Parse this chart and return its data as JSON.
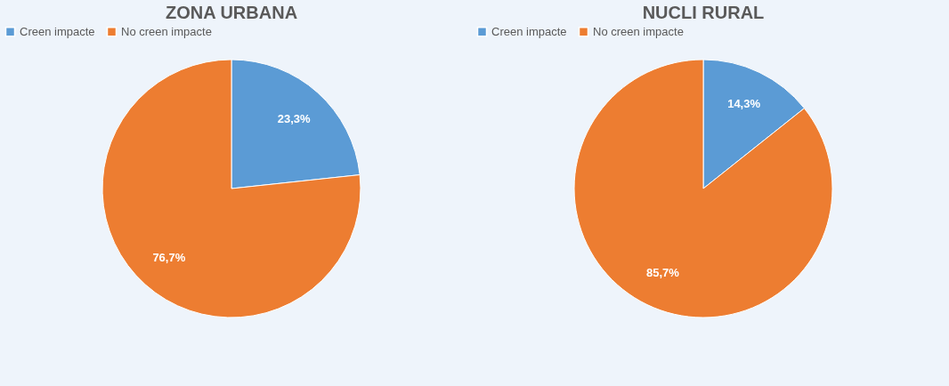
{
  "chart_data": [
    {
      "type": "pie",
      "title": "ZONA URBANA",
      "categories": [
        "Creen impacte",
        "No creen impacte"
      ],
      "values": [
        23.3,
        76.7
      ],
      "colors": [
        "#5b9bd5",
        "#ed7d31"
      ],
      "value_labels": [
        "23,3%",
        "76,7%"
      ],
      "legend": "top"
    },
    {
      "type": "pie",
      "title": "NUCLI RURAL",
      "categories": [
        "Creen impacte",
        "No creen impacte"
      ],
      "values": [
        14.3,
        85.7
      ],
      "colors": [
        "#5b9bd5",
        "#ed7d31"
      ],
      "value_labels": [
        "14,3%",
        "85,7%"
      ],
      "legend": "top"
    }
  ]
}
